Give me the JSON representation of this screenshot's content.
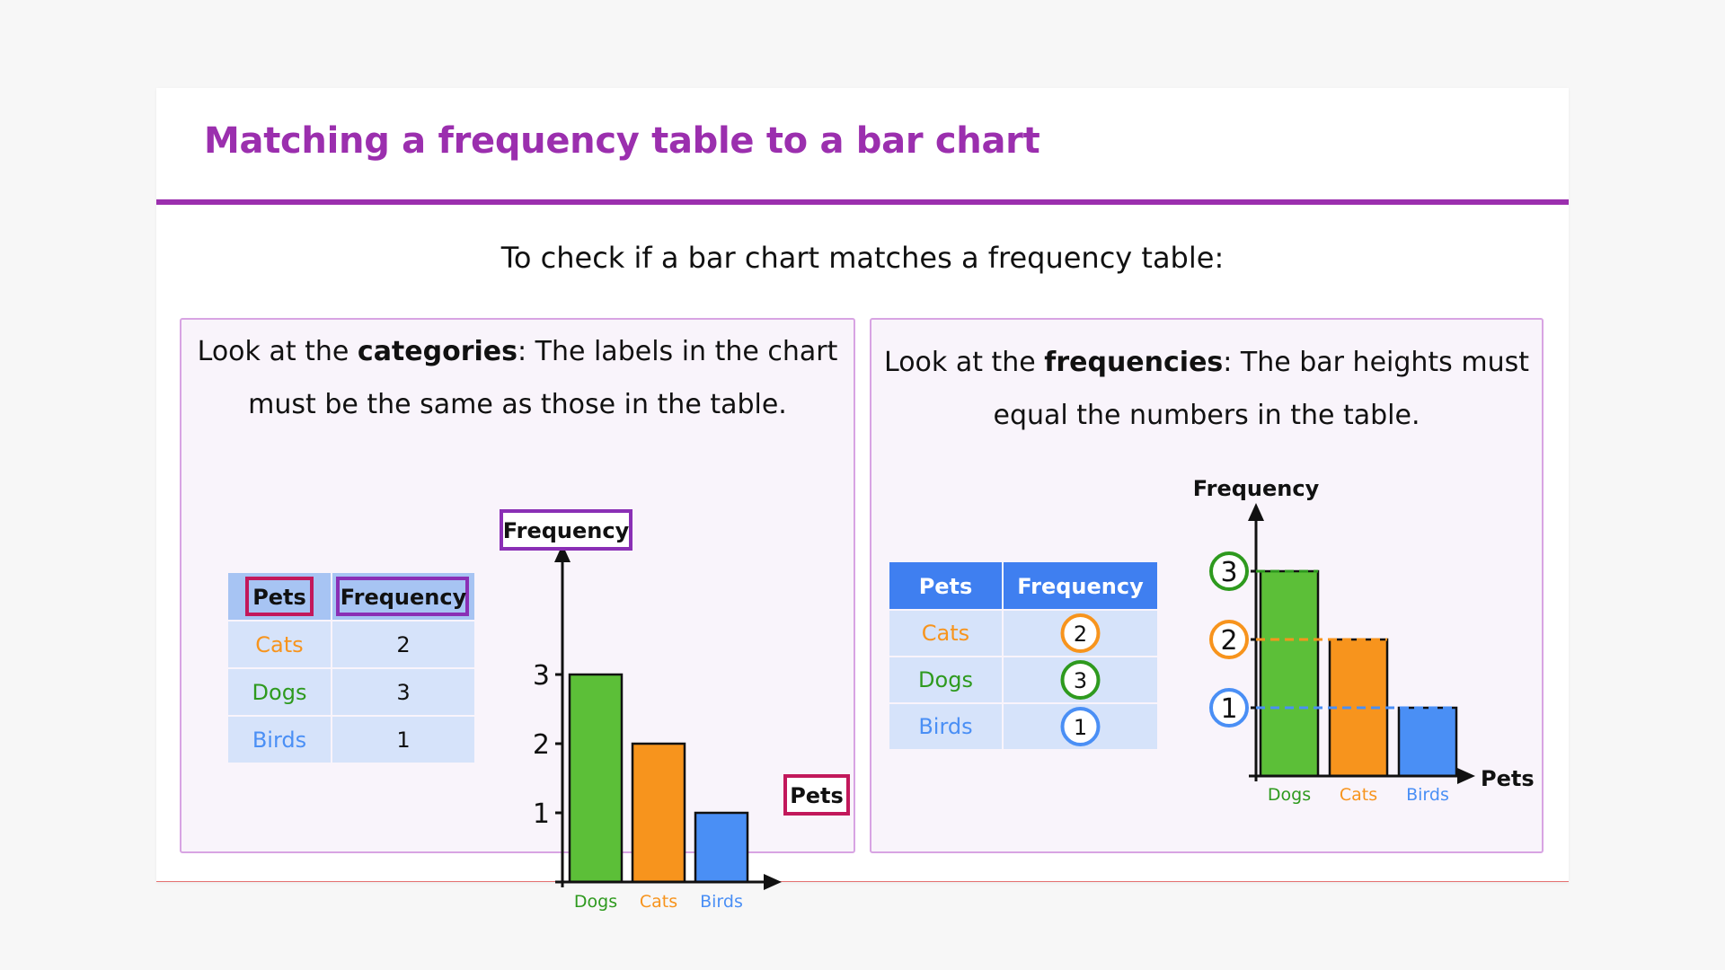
{
  "title": "Matching a frequency table to a bar chart",
  "intro": "To check if a bar chart matches a frequency table:",
  "left_panel": {
    "text_before": "Look at the ",
    "text_bold": "categories",
    "text_after": ": The labels in the chart must be the same as those in the table.",
    "table": {
      "headers": [
        "Pets",
        "Frequency"
      ],
      "rows": [
        {
          "pet": "Cats",
          "freq": "2"
        },
        {
          "pet": "Dogs",
          "freq": "3"
        },
        {
          "pet": "Birds",
          "freq": "1"
        }
      ]
    }
  },
  "right_panel": {
    "text_before": "Look at the ",
    "text_bold": "frequencies",
    "text_after": ": The bar heights must equal the numbers in the table.",
    "table": {
      "headers": [
        "Pets",
        "Frequency"
      ],
      "rows": [
        {
          "pet": "Cats",
          "freq": "2"
        },
        {
          "pet": "Dogs",
          "freq": "3"
        },
        {
          "pet": "Birds",
          "freq": "1"
        }
      ]
    }
  },
  "colors": {
    "title": "#9b2fae",
    "cats": "#f7941d",
    "dogs": "#5cbf38",
    "birds": "#4a8ff5",
    "cats_text": "#f7941d",
    "dogs_text": "#2e9a1e",
    "birds_text": "#4a8ff5",
    "pets_highlight": "#c2185b",
    "frequency_highlight": "#8a2fb5",
    "table_header_dark": "#3f7ff0"
  },
  "chart_data": [
    {
      "type": "bar",
      "categories": [
        "Dogs",
        "Cats",
        "Birds"
      ],
      "values": [
        3,
        2,
        1
      ],
      "xlabel": "Pets",
      "ylabel": "Frequency",
      "ylim": [
        0,
        3
      ],
      "yticks": [
        "1",
        "2",
        "3"
      ],
      "colors": [
        "#5cbf38",
        "#f7941d",
        "#4a8ff5"
      ]
    },
    {
      "type": "bar",
      "categories": [
        "Dogs",
        "Cats",
        "Birds"
      ],
      "values": [
        3,
        2,
        1
      ],
      "xlabel": "Pets",
      "ylabel": "Frequency",
      "ylim": [
        0,
        3
      ],
      "yticks": [
        "1",
        "2",
        "3"
      ],
      "colors": [
        "#5cbf38",
        "#f7941d",
        "#4a8ff5"
      ]
    }
  ]
}
